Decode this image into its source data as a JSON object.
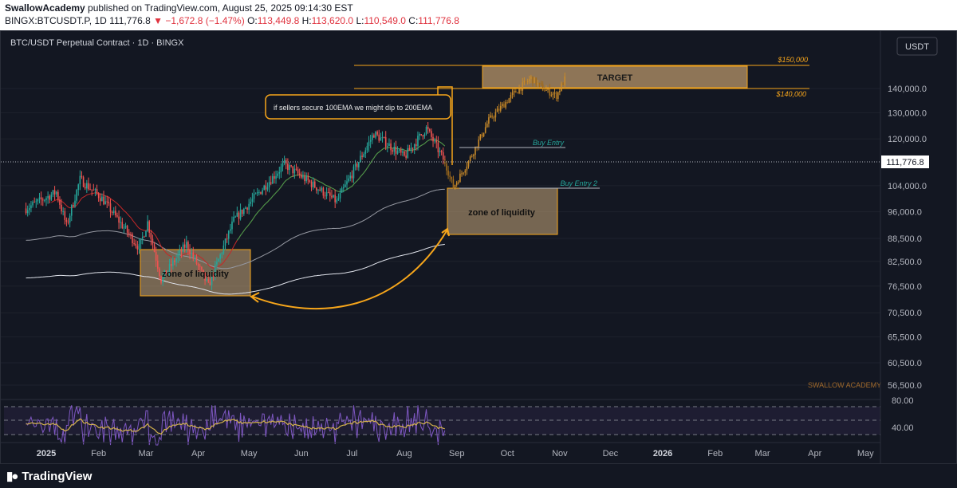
{
  "header": {
    "author": "SwallowAcademy",
    "published_text": " published on TradingView.com, August 25, 2025 09:14:30 EST",
    "symbol": "BINGX:BTCUSDT.P, 1D",
    "last": "111,776.8",
    "change": "▼ −1,672.8 (−1.47%)",
    "o_label": "O:",
    "o": "113,449.8",
    "h_label": "H:",
    "h": "113,620.0",
    "l_label": "L:",
    "l": "110,549.0",
    "c_label": "C:",
    "c": "111,776.8"
  },
  "chart_title": "BTC/USDT Perpetual Contract · 1D · BINGX",
  "currency_button": "USDT",
  "price_tag": "111,776.8",
  "watermark": "SWALLOW ACADEMY",
  "footer_logo": "TradingView",
  "annotations": {
    "target": "TARGET",
    "level_150": "$150,000",
    "level_140": "$140,000",
    "buy_entry": "Buy Entry",
    "buy_entry_2": "Buy Entry 2",
    "zone_left": "zone of liquidity",
    "zone_right": "zone of liquidity",
    "callout": "if sellers secure 100EMA we might dip to 200EMA"
  },
  "colors": {
    "background": "#131722",
    "up": "#26a69a",
    "down": "#ef5350",
    "zone": "#f7a61b",
    "projection": "#c88a2a",
    "ema_green": "#3fa34d",
    "ema_red": "#c62828",
    "ema100": "#9598a1",
    "ema200": "#e0e3eb",
    "rsi": "#7e57c2",
    "rsi_ma": "#d4b24c"
  },
  "chart_data": {
    "type": "candlestick",
    "title": "BTC/USDT Perpetual Contract · 1D · BINGX",
    "scale": "log",
    "x_ticks": [
      "2025",
      "Feb",
      "Mar",
      "Apr",
      "May",
      "Jun",
      "Jul",
      "Aug",
      "Sep",
      "Oct",
      "Nov",
      "Dec",
      "2026",
      "Feb",
      "Mar",
      "Apr",
      "May"
    ],
    "y_ticks": [
      "140,000.0",
      "130,000.0",
      "120,000.0",
      "104,000.0",
      "96,000.0",
      "88,500.0",
      "82,500.0",
      "76,500.0",
      "70,500.0",
      "65,500.0",
      "60,500.0",
      "56,500.0"
    ],
    "y_tick_values": [
      140000,
      130000,
      120000,
      104000,
      96000,
      88500,
      82500,
      76500,
      70500,
      65500,
      60500,
      56500
    ],
    "current_price": 111776.8,
    "price_path": [
      {
        "date": "2024-12-20",
        "price": 97000
      },
      {
        "date": "2025-01-07",
        "price": 102000
      },
      {
        "date": "2025-01-13",
        "price": 92000
      },
      {
        "date": "2025-01-21",
        "price": 106000
      },
      {
        "date": "2025-02-03",
        "price": 100000
      },
      {
        "date": "2025-02-25",
        "price": 86000
      },
      {
        "date": "2025-03-02",
        "price": 93000
      },
      {
        "date": "2025-03-10",
        "price": 78000
      },
      {
        "date": "2025-03-25",
        "price": 87000
      },
      {
        "date": "2025-04-07",
        "price": 76500
      },
      {
        "date": "2025-04-22",
        "price": 93500
      },
      {
        "date": "2025-05-22",
        "price": 111000
      },
      {
        "date": "2025-06-22",
        "price": 99000
      },
      {
        "date": "2025-07-14",
        "price": 122000
      },
      {
        "date": "2025-08-01",
        "price": 113500
      },
      {
        "date": "2025-08-14",
        "price": 124000
      },
      {
        "date": "2025-08-25",
        "price": 111776.8
      }
    ],
    "projection_path": [
      {
        "date": "2025-08-25",
        "price": 111776.8
      },
      {
        "date": "2025-08-30",
        "price": 103500
      },
      {
        "date": "2025-09-08",
        "price": 112000
      },
      {
        "date": "2025-09-20",
        "price": 127000
      },
      {
        "date": "2025-10-05",
        "price": 138000
      },
      {
        "date": "2025-10-15",
        "price": 144500
      },
      {
        "date": "2025-10-22",
        "price": 140000
      },
      {
        "date": "2025-10-30",
        "price": 137000
      },
      {
        "date": "2025-11-04",
        "price": 144000
      }
    ],
    "levels": [
      {
        "label": "$150,000",
        "price": 150000
      },
      {
        "label": "$140,000",
        "price": 140000
      },
      {
        "label": "Buy Entry",
        "price": 119500
      },
      {
        "label": "Buy Entry 2",
        "price": 102000
      }
    ],
    "rsi": {
      "y_ticks": [
        "80.00",
        "40.00"
      ],
      "bands": [
        70,
        50,
        30
      ]
    }
  }
}
